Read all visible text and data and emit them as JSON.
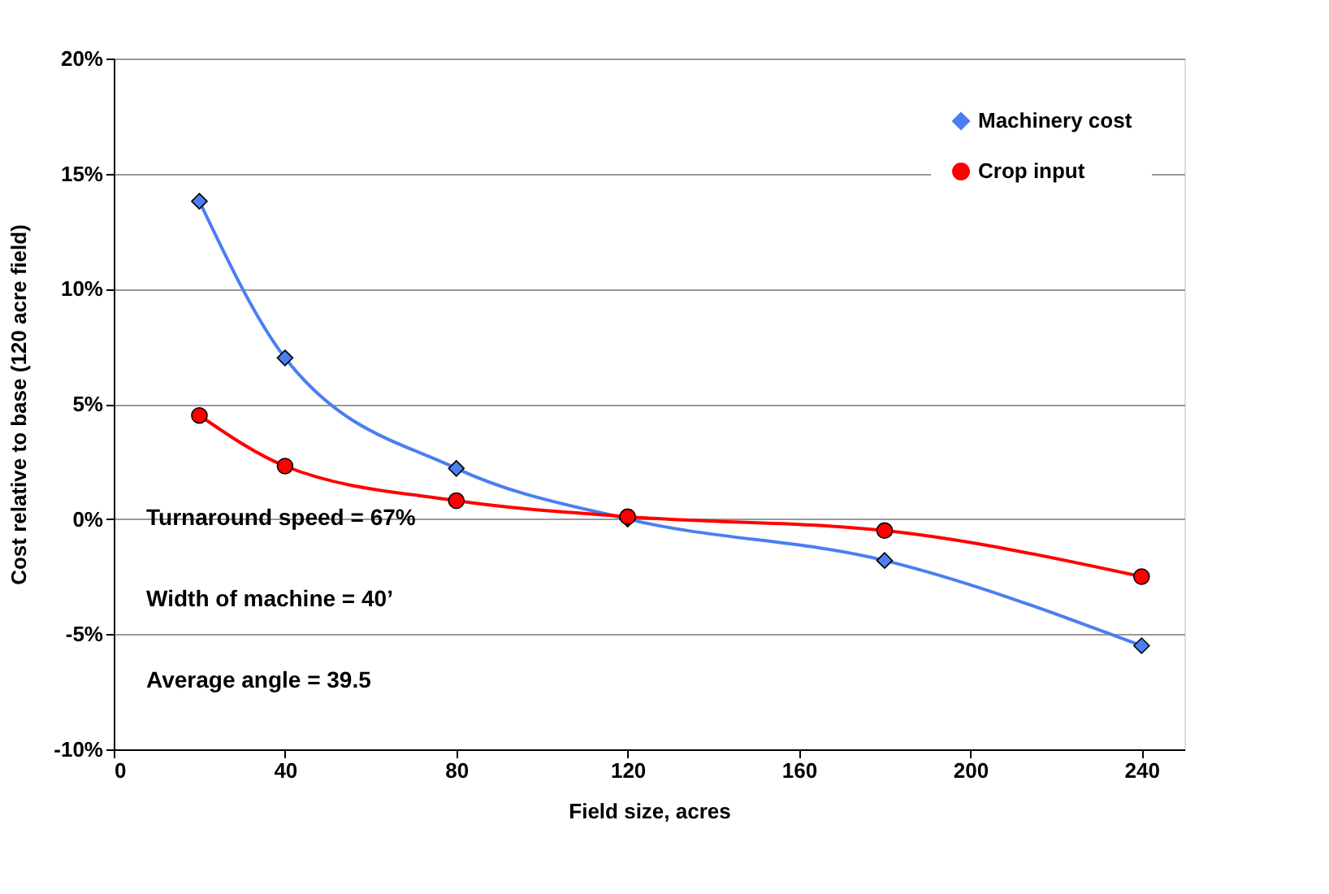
{
  "chart_data": {
    "type": "line",
    "xlabel": "Field size, acres",
    "ylabel": "Cost relative to base (120 acre field)",
    "x": [
      20,
      40,
      80,
      120,
      180,
      240
    ],
    "series": [
      {
        "name": "Machinery cost",
        "color": "#4a7ff0",
        "marker": "diamond",
        "values": [
          13.8,
          7.0,
          2.2,
          0.0,
          -1.8,
          -5.5
        ]
      },
      {
        "name": "Crop input",
        "color": "#ff0000",
        "marker": "circle",
        "values": [
          4.5,
          2.3,
          0.8,
          0.1,
          -0.5,
          -2.5
        ]
      }
    ],
    "xlim": [
      0,
      250
    ],
    "xticks": [
      0,
      40,
      80,
      120,
      160,
      200,
      240
    ],
    "ylim": [
      -10,
      20
    ],
    "yticks": [
      {
        "value": -10,
        "label": "-10%"
      },
      {
        "value": -5,
        "label": "-5%"
      },
      {
        "value": 0,
        "label": "0%"
      },
      {
        "value": 5,
        "label": "5%"
      },
      {
        "value": 10,
        "label": "10%"
      },
      {
        "value": 15,
        "label": "15%"
      },
      {
        "value": 20,
        "label": "20%"
      }
    ],
    "grid": "y",
    "legend": "top right",
    "line_style": "solid",
    "annotations": [
      "Turnaround speed = 67%",
      "Width of machine = 40’",
      "Average angle = 39.5"
    ]
  }
}
